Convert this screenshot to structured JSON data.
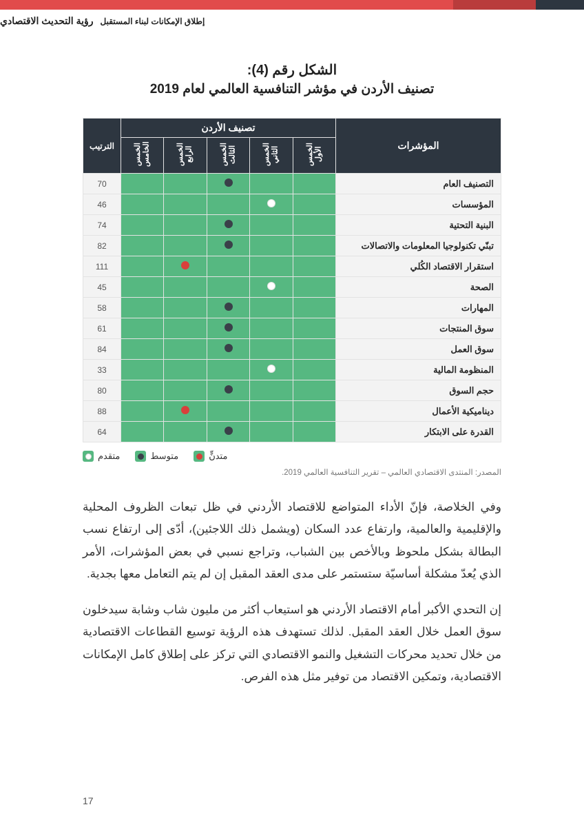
{
  "colors": {
    "header_dark": "#2d3640",
    "header_red": "#e14b4b",
    "header_red_dark": "#b93c3c",
    "cell_green": "#56b881",
    "cell_grey": "#f3f3f3",
    "dot_white": "#ffffff",
    "dot_dark": "#3a4049",
    "dot_red": "#d9403b",
    "text": "#333333",
    "muted": "#777777"
  },
  "header": {
    "brand_bold": "رؤية التحديث الاقتصادي",
    "brand_sub": "إطلاق الإمكانات لبناء المستقبل"
  },
  "figure": {
    "title_line1": "الشكل رقم (4):",
    "title_line2": "تصنيف الأردن في مؤشر التنافسية العالمي لعام 2019"
  },
  "table": {
    "indicator_header": "المؤشرات",
    "group_header": "تصنيف الأردن",
    "rank_header": "الترتيب",
    "quintile_labels": [
      "الخمس الأول",
      "الخمس الثاني",
      "الخمس الثالث",
      "الخمس الرابع",
      "الخمس الخامس"
    ],
    "rows": [
      {
        "indicator": "التصنيف العام",
        "rank": 70,
        "quintile": 3,
        "level": "mid"
      },
      {
        "indicator": "المؤسسات",
        "rank": 46,
        "quintile": 2,
        "level": "adv"
      },
      {
        "indicator": "البنية التحتية",
        "rank": 74,
        "quintile": 3,
        "level": "mid"
      },
      {
        "indicator": "تبنّي تكنولوجيا المعلومات والاتصالات",
        "rank": 82,
        "quintile": 3,
        "level": "mid"
      },
      {
        "indicator": "استقرار الاقتصاد الكُلي",
        "rank": 111,
        "quintile": 4,
        "level": "low"
      },
      {
        "indicator": "الصحة",
        "rank": 45,
        "quintile": 2,
        "level": "adv"
      },
      {
        "indicator": "المهارات",
        "rank": 58,
        "quintile": 3,
        "level": "mid"
      },
      {
        "indicator": "سوق المنتجات",
        "rank": 61,
        "quintile": 3,
        "level": "mid"
      },
      {
        "indicator": "سوق العمل",
        "rank": 84,
        "quintile": 3,
        "level": "mid"
      },
      {
        "indicator": "المنظومة المالية",
        "rank": 33,
        "quintile": 2,
        "level": "adv"
      },
      {
        "indicator": "حجم السوق",
        "rank": 80,
        "quintile": 3,
        "level": "mid"
      },
      {
        "indicator": "ديناميكية الأعمال",
        "rank": 88,
        "quintile": 4,
        "level": "low"
      },
      {
        "indicator": "القدرة على الابتكار",
        "rank": 64,
        "quintile": 3,
        "level": "mid"
      }
    ]
  },
  "legend": {
    "adv": "متقدم",
    "mid": "متوسط",
    "low": "متدنٍّ"
  },
  "source": "المصدر: المنتدى الاقتصادي العالمي – تقرير التنافسية العالمي 2019.",
  "paragraph1": "وفي الخلاصة، فإنّ الأداء المتواضع للاقتصاد الأردني في ظل تبعات الظروف المحلية والإقليمية والعالمية، وارتفاع عدد السكان (ويشمل ذلك اللاجئين)، أدّى إلى ارتفاع نسب البطالة بشكل ملحوظ وبالأخص بين الشباب، وتراجع نسبي في بعض المؤشرات، الأمر الذي يُعدّ مشكلة أساسيّة ستستمر على مدى العقد المقبل إن لم يتم التعامل معها بجدية.",
  "paragraph2": "إن التحدي الأكبر أمام الاقتصاد الأردني هو استيعاب أكثر من مليون شاب وشابة سيدخلون سوق العمل خلال العقد المقبل. لذلك تستهدف هذه الرؤية توسيع القطاعات الاقتصادية من خلال تحديد محركات التشغيل والنمو الاقتصادي التي تركز على إطلاق كامل الإمكانات الاقتصادية، وتمكين الاقتصاد من توفير مثل هذه الفرص.",
  "page_number": "17"
}
